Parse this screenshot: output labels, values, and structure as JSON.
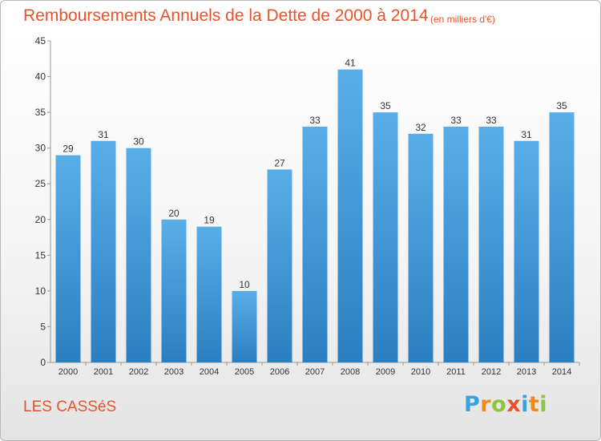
{
  "chart_data": {
    "type": "bar",
    "title": "Remboursements Annuels de la Dette de 2000 à 2014",
    "subtitle": "(en milliers d'€)",
    "categories": [
      "2000",
      "2001",
      "2002",
      "2003",
      "2004",
      "2005",
      "2006",
      "2007",
      "2008",
      "2009",
      "2010",
      "2011",
      "2012",
      "2013",
      "2014"
    ],
    "values": [
      29,
      31,
      30,
      20,
      19,
      10,
      27,
      33,
      41,
      35,
      32,
      33,
      33,
      31,
      35
    ],
    "ylim": [
      0,
      45
    ],
    "yticks": [
      0,
      5,
      10,
      15,
      20,
      25,
      30,
      35,
      40,
      45
    ],
    "grid": false,
    "data_labels": true,
    "bar_color_top": "#5aaee8",
    "bar_color_bottom": "#2a7fc0",
    "axis_color": "#999999"
  },
  "footer": {
    "place_name": "LES CASSéS",
    "brand": {
      "letters": [
        "P",
        "r",
        "o",
        "x",
        "i",
        "t",
        "i"
      ],
      "colors": [
        "#3aa3dc",
        "#f08a1c",
        "#8cc63e",
        "#e8532b",
        "#3aa3dc",
        "#f08a1c",
        "#8cc63e"
      ]
    }
  },
  "colors": {
    "title": "#e8532b",
    "tick_text": "#333333"
  }
}
